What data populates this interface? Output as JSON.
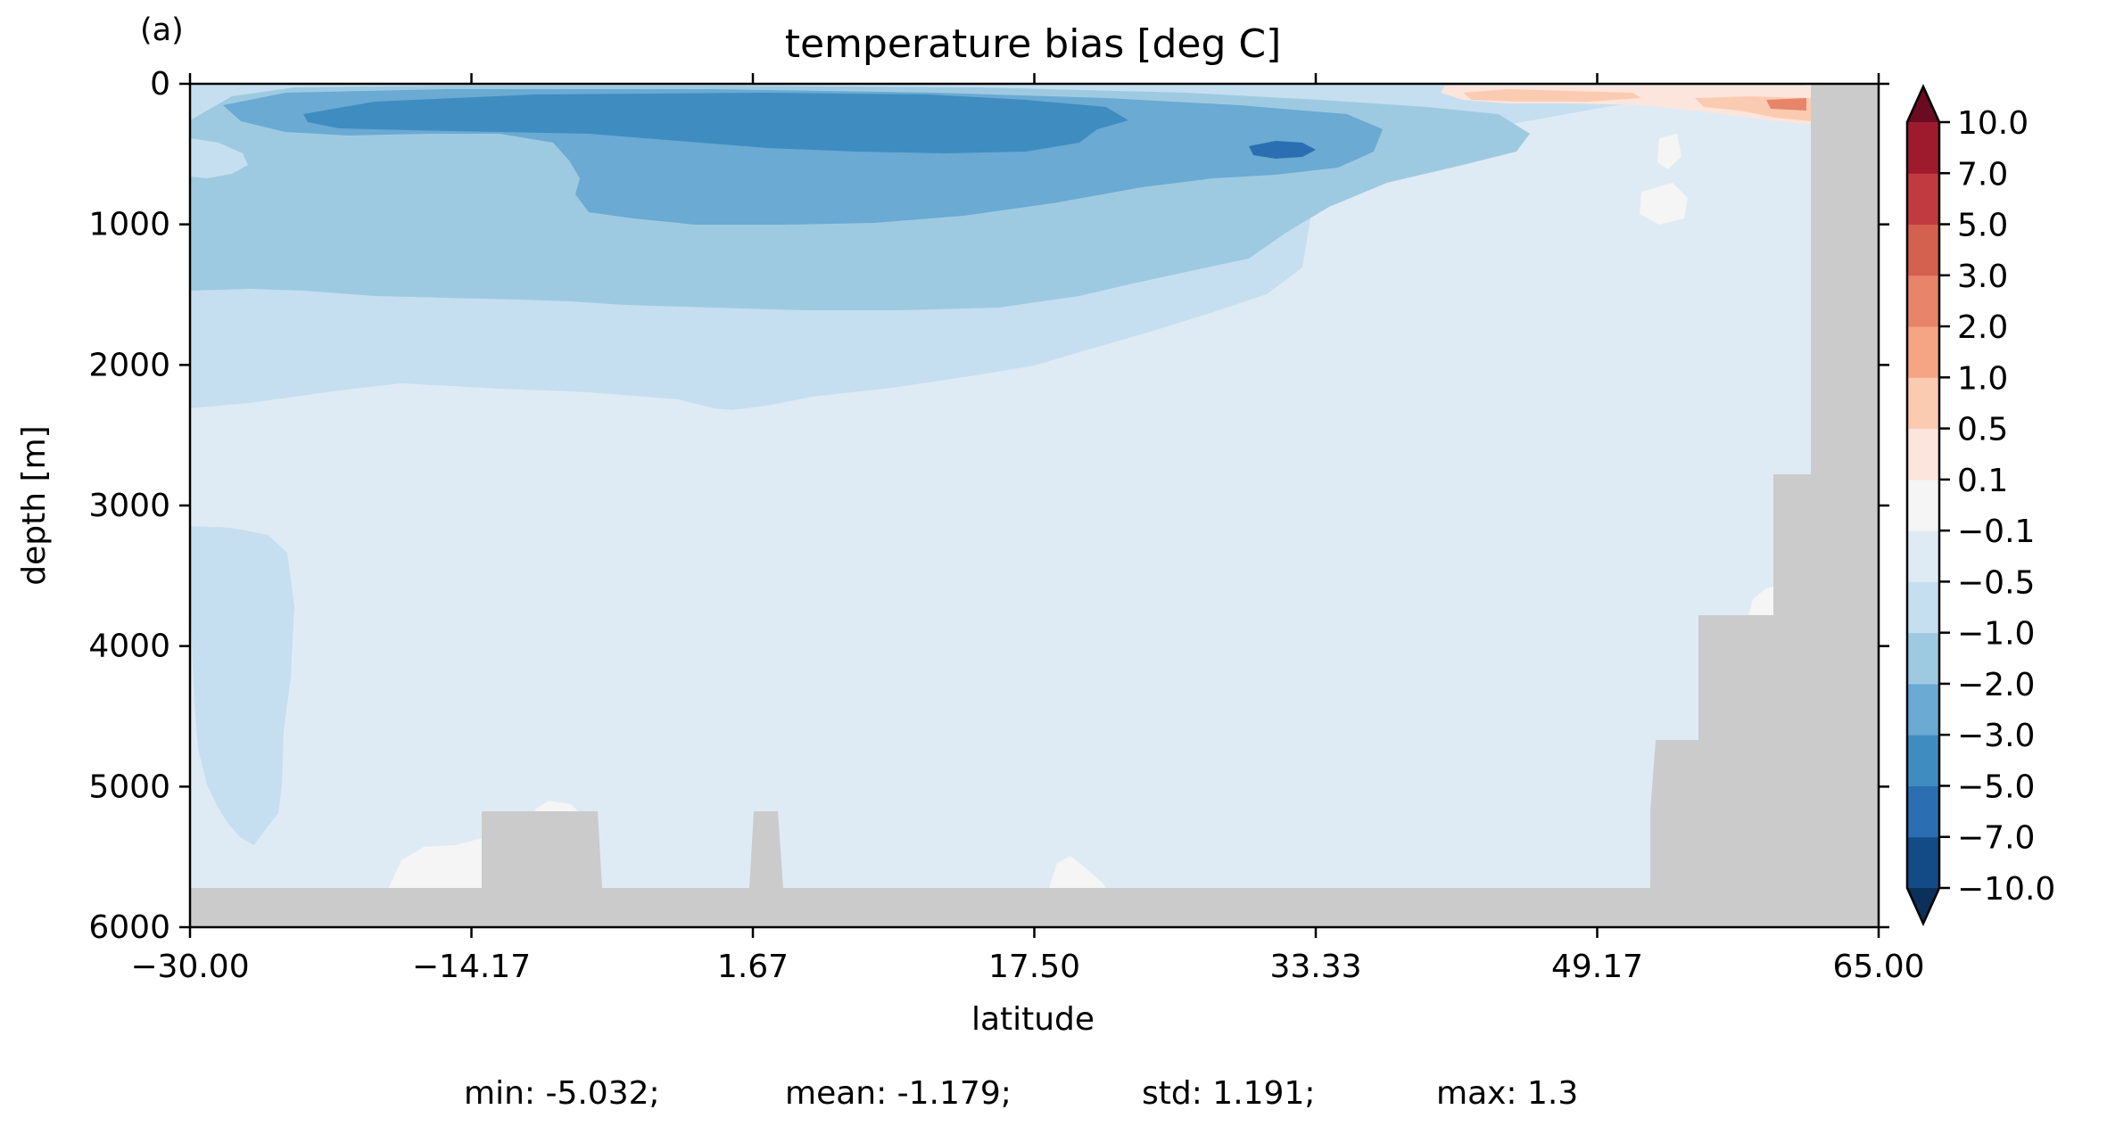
{
  "panel_label": "(a)",
  "stats_line": {
    "min": "min: -5.032;",
    "mean": "mean: -1.179;",
    "std": "std: 1.191;",
    "max": "max: 1.3"
  },
  "colors": {
    "land": "#cbcbcb",
    "levels": [
      "#134b87",
      "#2b6fb2",
      "#3f8cc1",
      "#6aaad3",
      "#9ecae1",
      "#c5dff0",
      "#dfebf4",
      "#f4f5f4",
      "#fce5dc",
      "#fbcbb1",
      "#f5a583",
      "#e7846a",
      "#d46050",
      "#c13a3f",
      "#9e1b2e"
    ],
    "under": "#0b3059",
    "over": "#6a0b21"
  },
  "chart_data": {
    "type": "contourf",
    "title": "temperature bias [deg C]",
    "xlabel": "latitude",
    "ylabel": "depth [m]",
    "xlim": [
      -30.0,
      65.0
    ],
    "ylim": [
      6000,
      0
    ],
    "y_inverted": true,
    "xticks": [
      "−30.00",
      "−14.17",
      "1.67",
      "17.50",
      "33.33",
      "49.17",
      "65.00"
    ],
    "yticks": [
      "0",
      "1000",
      "2000",
      "3000",
      "4000",
      "5000",
      "6000"
    ],
    "colorbar": {
      "levels": [
        -10.0,
        -7.0,
        -5.0,
        -3.0,
        -2.0,
        -1.0,
        -0.5,
        -0.1,
        0.1,
        0.5,
        1.0,
        2.0,
        3.0,
        5.0,
        7.0,
        10.0
      ],
      "tick_labels": [
        "−10.0",
        "−7.0",
        "−5.0",
        "−3.0",
        "−2.0",
        "−1.0",
        "−0.5",
        "−0.1",
        "0.1",
        "0.5",
        "1.0",
        "2.0",
        "3.0",
        "5.0",
        "7.0",
        "10.0"
      ],
      "extend": "both"
    }
  }
}
